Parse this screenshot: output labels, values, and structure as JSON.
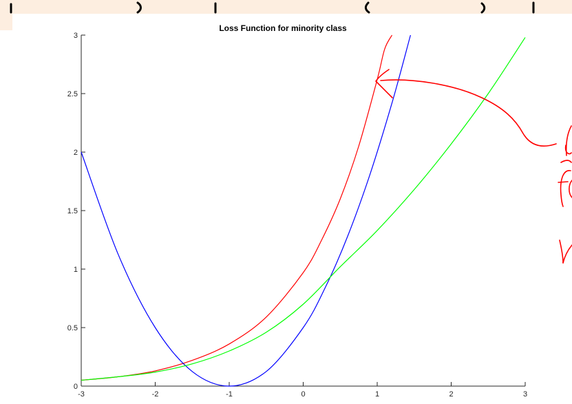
{
  "chart_data": {
    "type": "line",
    "title": "Loss Function for minority class",
    "xlabel": "",
    "ylabel": "",
    "xlim": [
      -3,
      3
    ],
    "ylim": [
      0,
      3
    ],
    "xticks": [
      -3,
      -2,
      -1,
      0,
      1,
      2,
      3
    ],
    "yticks": [
      0,
      0.5,
      1,
      1.5,
      2,
      2.5,
      3
    ],
    "xtick_labels": [
      "-3",
      "-2",
      "-1",
      "0",
      "1",
      "2",
      "3"
    ],
    "ytick_labels": [
      "0",
      "0.5",
      "1",
      "1.5",
      "2",
      "2.5",
      "3"
    ],
    "grid": false,
    "series": [
      {
        "color": "#ff0000",
        "x": [
          -3,
          -2.5,
          -2,
          -1.5,
          -1,
          -0.5,
          0,
          0.25,
          0.5,
          0.75,
          1,
          1.1,
          1.2
        ],
        "y": [
          0.05,
          0.08,
          0.13,
          0.22,
          0.36,
          0.59,
          0.97,
          1.25,
          1.6,
          2.05,
          2.62,
          2.88,
          3.0
        ]
      },
      {
        "color": "#0000ff",
        "x": [
          -3,
          -2.5,
          -2,
          -1.5,
          -1,
          -0.5,
          0,
          0.3,
          0.6,
          0.9,
          1.2,
          1.45
        ],
        "y": [
          2.0,
          1.125,
          0.5,
          0.125,
          0.0,
          0.125,
          0.5,
          0.845,
          1.28,
          1.805,
          2.42,
          3.0
        ]
      },
      {
        "color": "#00ff00",
        "x": [
          -3,
          -2.5,
          -2,
          -1.5,
          -1,
          -0.5,
          0,
          0.5,
          1,
          1.5,
          2,
          2.5,
          3
        ],
        "y": [
          0.05,
          0.08,
          0.12,
          0.19,
          0.3,
          0.46,
          0.7,
          1.02,
          1.33,
          1.68,
          2.07,
          2.5,
          2.98
        ]
      }
    ]
  },
  "annotation": {
    "color": "#ff0000",
    "note": "handwritten arrow pointing to red curve"
  }
}
